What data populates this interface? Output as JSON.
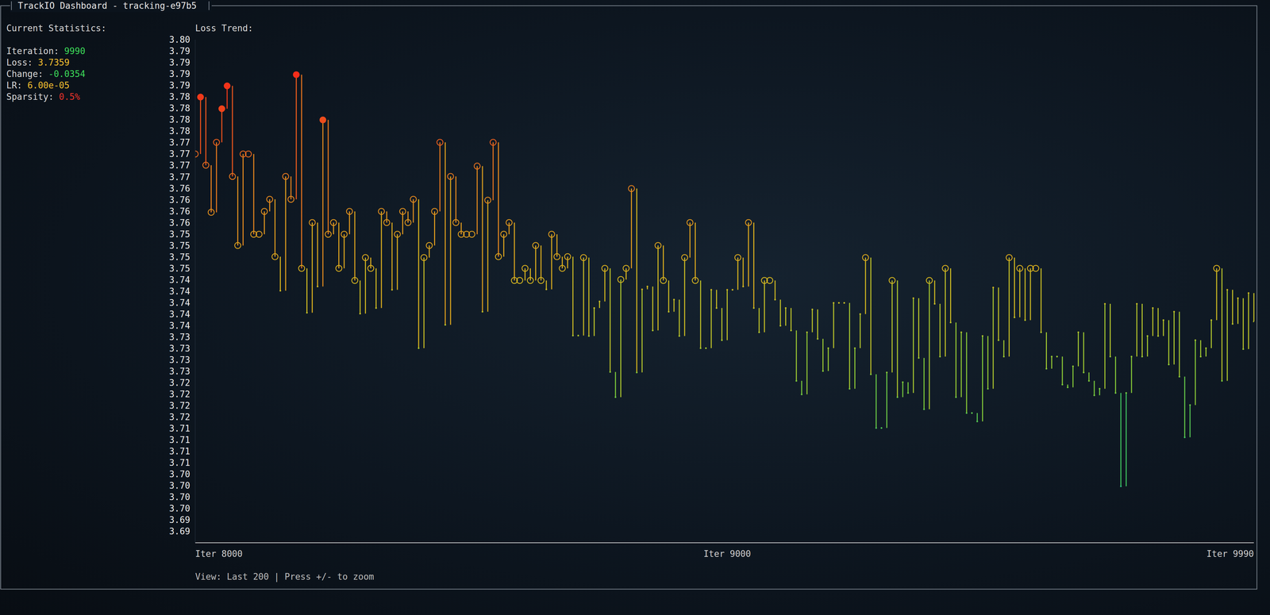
{
  "title": "TrackIO Dashboard - tracking-e97b5",
  "panel": {
    "heading": "Current Statistics:",
    "items": [
      {
        "label": "Iteration:",
        "value": "9990",
        "color": "#3ddc5a"
      },
      {
        "label": "Loss:",
        "value": "3.7359",
        "color": "#f2c030"
      },
      {
        "label": "Change:",
        "value": "-0.0354",
        "color": "#3ddc5a"
      },
      {
        "label": "LR:",
        "value": "6.00e-05",
        "color": "#f2c030"
      },
      {
        "label": "Sparsity:",
        "value": "0.5%",
        "color": "#e8322a"
      }
    ]
  },
  "footer": "View: Last 200 | Press +/- to zoom",
  "chart_data": {
    "type": "stem",
    "marker": "circle",
    "title": "Loss Trend:",
    "x": [
      8000,
      8010,
      8020,
      8030,
      8040,
      8050,
      8060,
      8070,
      8080,
      8090,
      8100,
      8110,
      8120,
      8130,
      8140,
      8150,
      8160,
      8170,
      8180,
      8190,
      8200,
      8210,
      8220,
      8230,
      8240,
      8250,
      8260,
      8270,
      8280,
      8290,
      8300,
      8310,
      8320,
      8330,
      8340,
      8350,
      8360,
      8370,
      8380,
      8390,
      8400,
      8410,
      8420,
      8430,
      8440,
      8450,
      8460,
      8470,
      8480,
      8490,
      8500,
      8510,
      8520,
      8530,
      8540,
      8550,
      8560,
      8570,
      8580,
      8590,
      8600,
      8610,
      8620,
      8630,
      8640,
      8650,
      8660,
      8670,
      8680,
      8690,
      8700,
      8710,
      8720,
      8730,
      8740,
      8750,
      8760,
      8770,
      8780,
      8790,
      8800,
      8810,
      8820,
      8830,
      8840,
      8850,
      8860,
      8870,
      8880,
      8890,
      8900,
      8910,
      8920,
      8930,
      8940,
      8950,
      8960,
      8970,
      8980,
      8990,
      9000,
      9010,
      9020,
      9030,
      9040,
      9050,
      9060,
      9070,
      9080,
      9090,
      9100,
      9110,
      9120,
      9130,
      9140,
      9150,
      9160,
      9170,
      9180,
      9190,
      9200,
      9210,
      9220,
      9230,
      9240,
      9250,
      9260,
      9270,
      9280,
      9290,
      9300,
      9310,
      9320,
      9330,
      9340,
      9350,
      9360,
      9370,
      9380,
      9390,
      9400,
      9410,
      9420,
      9430,
      9440,
      9450,
      9460,
      9470,
      9480,
      9490,
      9500,
      9510,
      9520,
      9530,
      9540,
      9550,
      9560,
      9570,
      9580,
      9590,
      9600,
      9610,
      9620,
      9630,
      9640,
      9650,
      9660,
      9670,
      9680,
      9690,
      9700,
      9710,
      9720,
      9730,
      9740,
      9750,
      9760,
      9770,
      9780,
      9790,
      9800,
      9810,
      9820,
      9830,
      9840,
      9850,
      9860,
      9870,
      9880,
      9890,
      9900,
      9910,
      9920,
      9930,
      9940,
      9950,
      9960,
      9970,
      9980,
      9990
    ],
    "values": [
      3.7718,
      3.784,
      3.7694,
      3.7593,
      3.7743,
      3.7815,
      3.7864,
      3.767,
      3.7522,
      3.7718,
      3.7718,
      3.7546,
      3.7546,
      3.7595,
      3.7621,
      3.7498,
      3.7425,
      3.767,
      3.7621,
      3.7888,
      3.7473,
      3.7378,
      3.7571,
      3.7434,
      3.7791,
      3.7546,
      3.7571,
      3.7473,
      3.7546,
      3.7595,
      3.7447,
      3.7376,
      3.7496,
      3.7473,
      3.7388,
      3.7595,
      3.7571,
      3.7427,
      3.7546,
      3.7595,
      3.7571,
      3.7621,
      3.7302,
      3.7496,
      3.7522,
      3.7595,
      3.7743,
      3.7352,
      3.767,
      3.7571,
      3.7546,
      3.7546,
      3.7546,
      3.7692,
      3.738,
      3.7619,
      3.7743,
      3.7498,
      3.7546,
      3.7571,
      3.7447,
      3.7447,
      3.7473,
      3.7447,
      3.7522,
      3.7447,
      3.7428,
      3.7546,
      3.7498,
      3.7473,
      3.7498,
      3.7329,
      3.7329,
      3.7496,
      3.7328,
      3.7388,
      3.7402,
      3.7473,
      3.7251,
      3.7197,
      3.7449,
      3.7473,
      3.7644,
      3.725,
      3.7428,
      3.7434,
      3.734,
      3.7522,
      3.7447,
      3.738,
      3.7406,
      3.7328,
      3.7496,
      3.7571,
      3.7447,
      3.7302,
      3.7302,
      3.7427,
      3.7388,
      3.7319,
      3.7427,
      3.7427,
      3.7496,
      3.7434,
      3.7571,
      3.7388,
      3.7336,
      3.7447,
      3.7447,
      3.7406,
      3.735,
      3.7388,
      3.734,
      3.7232,
      3.7203,
      3.7336,
      3.7385,
      3.7322,
      3.7253,
      3.7302,
      3.7399,
      3.7399,
      3.7399,
      3.7215,
      3.7302,
      3.7375,
      3.7496,
      3.7246,
      3.7131,
      3.7131,
      3.725,
      3.7447,
      3.7197,
      3.7229,
      3.7206,
      3.7409,
      3.7281,
      3.7171,
      3.7447,
      3.7397,
      3.7284,
      3.7473,
      3.7357,
      3.7197,
      3.7336,
      3.7163,
      3.7163,
      3.7145,
      3.7328,
      3.7215,
      3.7432,
      3.7319,
      3.7284,
      3.7496,
      3.7368,
      3.7473,
      3.7362,
      3.7473,
      3.7473,
      3.7336,
      3.7258,
      3.7284,
      3.7284,
      3.7224,
      3.7218,
      3.7263,
      3.7336,
      3.725,
      3.7232,
      3.7201,
      3.7215,
      3.7397,
      3.7284,
      3.7206,
      3.7006,
      3.7206,
      3.7284,
      3.7397,
      3.7284,
      3.7328,
      3.7388,
      3.7328,
      3.7362,
      3.7267,
      3.738,
      3.7241,
      3.7111,
      3.718,
      3.7319,
      3.7284,
      3.7302,
      3.7362,
      3.7473,
      3.7232,
      3.7427,
      3.7354,
      3.7409,
      3.73,
      3.742,
      3.7359
    ],
    "xlim": [
      8000,
      9990
    ],
    "xticks": [
      {
        "value": 8000,
        "label": "Iter 8000"
      },
      {
        "value": 9000,
        "label": "Iter 9000"
      },
      {
        "value": 9990,
        "label": "Iter 9990"
      }
    ],
    "ylim": [
      3.69095,
      3.7963
    ],
    "yticks": [
      {
        "value": 3.7963,
        "label": "3.80"
      },
      {
        "value": 3.79385,
        "label": "3.79"
      },
      {
        "value": 3.7914,
        "label": "3.79"
      },
      {
        "value": 3.78895,
        "label": "3.79"
      },
      {
        "value": 3.7865,
        "label": "3.79"
      },
      {
        "value": 3.78405,
        "label": "3.78"
      },
      {
        "value": 3.7816,
        "label": "3.78"
      },
      {
        "value": 3.77915,
        "label": "3.78"
      },
      {
        "value": 3.7767,
        "label": "3.78"
      },
      {
        "value": 3.77425,
        "label": "3.77"
      },
      {
        "value": 3.7718,
        "label": "3.77"
      },
      {
        "value": 3.76935,
        "label": "3.77"
      },
      {
        "value": 3.7669,
        "label": "3.77"
      },
      {
        "value": 3.76445,
        "label": "3.76"
      },
      {
        "value": 3.762,
        "label": "3.76"
      },
      {
        "value": 3.75955,
        "label": "3.76"
      },
      {
        "value": 3.7571,
        "label": "3.76"
      },
      {
        "value": 3.75465,
        "label": "3.75"
      },
      {
        "value": 3.7522,
        "label": "3.75"
      },
      {
        "value": 3.74975,
        "label": "3.75"
      },
      {
        "value": 3.7473,
        "label": "3.75"
      },
      {
        "value": 3.74485,
        "label": "3.74"
      },
      {
        "value": 3.7424,
        "label": "3.74"
      },
      {
        "value": 3.73995,
        "label": "3.74"
      },
      {
        "value": 3.7375,
        "label": "3.74"
      },
      {
        "value": 3.73505,
        "label": "3.74"
      },
      {
        "value": 3.7326,
        "label": "3.73"
      },
      {
        "value": 3.73015,
        "label": "3.73"
      },
      {
        "value": 3.7277,
        "label": "3.73"
      },
      {
        "value": 3.72525,
        "label": "3.73"
      },
      {
        "value": 3.7228,
        "label": "3.72"
      },
      {
        "value": 3.72035,
        "label": "3.72"
      },
      {
        "value": 3.7179,
        "label": "3.72"
      },
      {
        "value": 3.71545,
        "label": "3.72"
      },
      {
        "value": 3.713,
        "label": "3.71"
      },
      {
        "value": 3.71055,
        "label": "3.71"
      },
      {
        "value": 3.7081,
        "label": "3.71"
      },
      {
        "value": 3.70565,
        "label": "3.71"
      },
      {
        "value": 3.7032,
        "label": "3.70"
      },
      {
        "value": 3.70075,
        "label": "3.70"
      },
      {
        "value": 3.6983,
        "label": "3.70"
      },
      {
        "value": 3.69585,
        "label": "3.70"
      },
      {
        "value": 3.6934,
        "label": "3.69"
      },
      {
        "value": 3.69095,
        "label": "3.69"
      }
    ]
  }
}
